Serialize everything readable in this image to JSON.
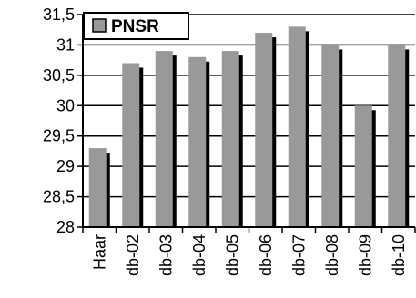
{
  "chart_data": {
    "type": "bar",
    "categories": [
      "Haar",
      "db-02",
      "db-03",
      "db-04",
      "db-05",
      "db-06",
      "db-07",
      "db-08",
      "db-09",
      "db-10"
    ],
    "series": [
      {
        "name": "PNSR",
        "values": [
          29.3,
          30.7,
          30.9,
          30.8,
          30.9,
          31.2,
          31.3,
          31.0,
          30.0,
          31.0
        ]
      }
    ],
    "ylim": [
      28,
      31.5
    ],
    "yticks": [
      "28",
      "28,5",
      "29",
      "29,5",
      "30",
      "30,5",
      "31",
      "31,5"
    ],
    "ytick_values": [
      28,
      28.5,
      29,
      29.5,
      30,
      30.5,
      31,
      31.5
    ],
    "grid": true,
    "legend_position": "top-left",
    "colors": {
      "bar": "#999999",
      "shadow": "#000000",
      "grid": "#000000"
    }
  }
}
